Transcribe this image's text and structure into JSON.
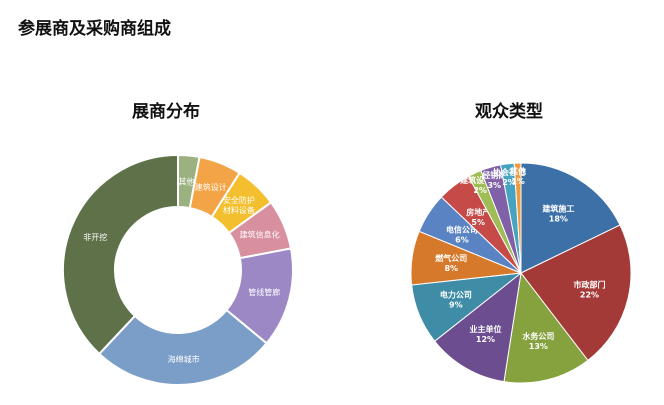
{
  "page": {
    "title": "参展商及采购商组成"
  },
  "chart_data": [
    {
      "type": "pie",
      "title": "展商分布",
      "categories": [
        "其他",
        "建筑设计",
        "安全防护材料设备",
        "建筑信息化",
        "管线管廊",
        "海绵城市",
        "非开挖"
      ],
      "labels": [
        "其他",
        "建筑设计",
        "安全防护\n材料设备",
        "建筑信息化",
        "管线管廊",
        "海绵城市",
        "非开挖"
      ],
      "values": [
        3,
        6,
        6,
        7,
        14,
        26,
        38
      ],
      "colors": [
        "#9bb17f",
        "#f3a447",
        "#f3bf2e",
        "#d8909f",
        "#9d88c6",
        "#7b9ec8",
        "#5e7149"
      ],
      "legend": "none"
    },
    {
      "type": "pie",
      "title": "观众类型",
      "categories": [
        "建筑施工",
        "市政部门",
        "水务公司",
        "业主单位",
        "电力公司",
        "燃气公司",
        "电信公司",
        "房地产",
        "建筑设计院",
        "经销商",
        "协会社团",
        "其他"
      ],
      "values": [
        18,
        22,
        13,
        12,
        9,
        8,
        6,
        5,
        2,
        3,
        2,
        1
      ],
      "value_labels": [
        "18%",
        "22%",
        "13%",
        "12%",
        "9%",
        "8%",
        "6%",
        "5%",
        "2%",
        "3%",
        "2%",
        "1%"
      ],
      "colors": [
        "#3e70a8",
        "#a33a38",
        "#86a23f",
        "#6c4d90",
        "#3f8ca6",
        "#d6792a",
        "#5a83c4",
        "#c54a48",
        "#9fbd55",
        "#8060a6",
        "#46a4c2",
        "#f09a3e"
      ],
      "legend": "none"
    }
  ]
}
